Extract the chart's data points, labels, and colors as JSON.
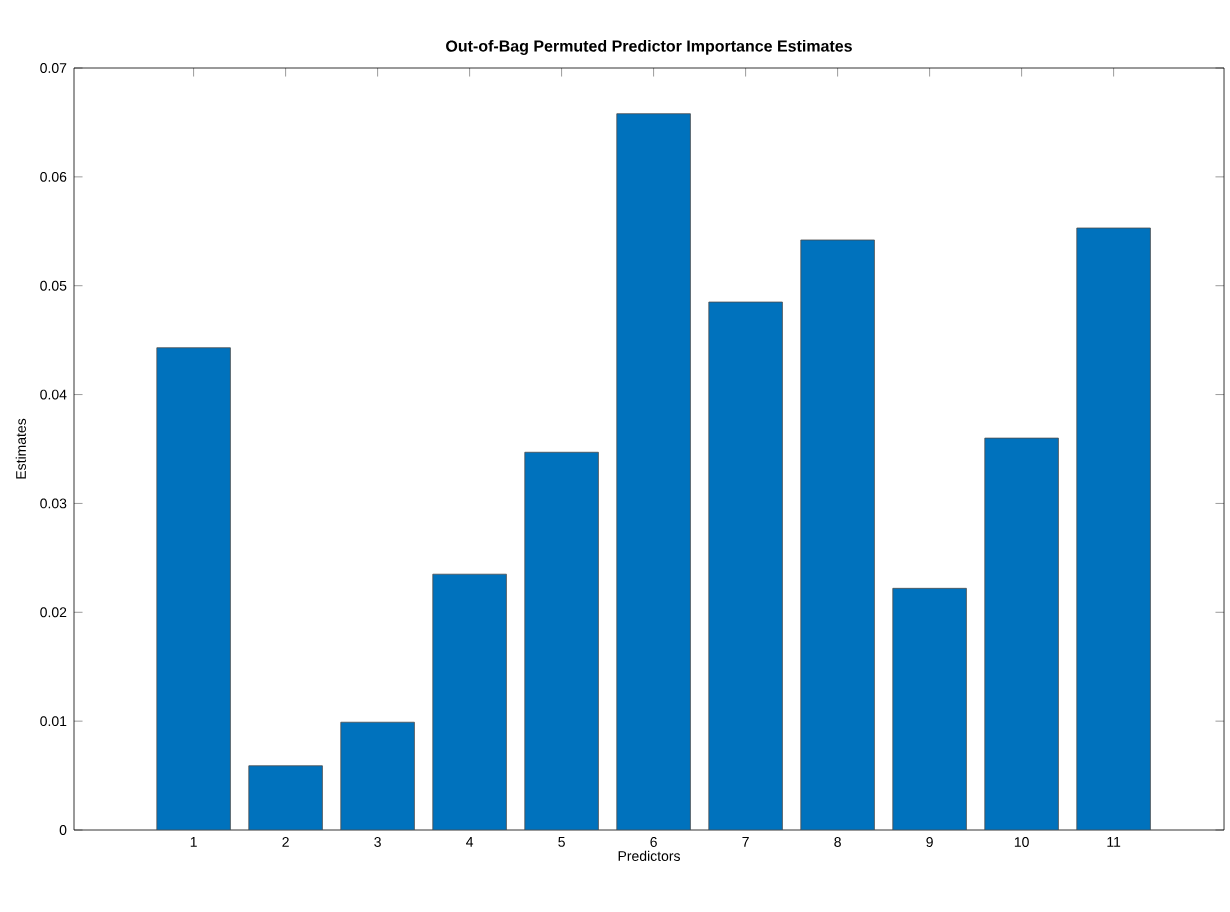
{
  "chart_data": {
    "type": "bar",
    "title": "Out-of-Bag Permuted Predictor Importance Estimates",
    "xlabel": "Predictors",
    "ylabel": "Estimates",
    "categories": [
      "1",
      "2",
      "3",
      "4",
      "5",
      "6",
      "7",
      "8",
      "9",
      "10",
      "11"
    ],
    "values": [
      0.0443,
      0.0059,
      0.0099,
      0.0235,
      0.0347,
      0.0658,
      0.0485,
      0.0542,
      0.0222,
      0.036,
      0.0553
    ],
    "color": "#0072bd",
    "ylim": [
      0,
      0.07
    ],
    "yticks": [
      0,
      0.01,
      0.02,
      0.03,
      0.04,
      0.05,
      0.06,
      0.07
    ],
    "grid": false
  }
}
